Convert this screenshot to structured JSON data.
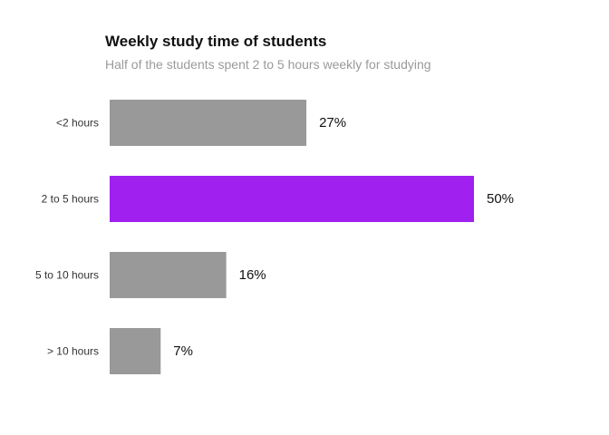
{
  "chart_data": {
    "type": "bar",
    "orientation": "horizontal",
    "title": "Weekly study time of students",
    "subtitle": "Half of the students spent 2 to 5 hours weekly for studying",
    "xlabel": "",
    "ylabel": "",
    "categories": [
      "<2 hours",
      "2 to 5 hours",
      "5 to 10 hours",
      "> 10 hours"
    ],
    "values": [
      27,
      50,
      16,
      7
    ],
    "value_labels": [
      "27%",
      "50%",
      "16%",
      "7%"
    ],
    "unit": "%",
    "xlim": [
      0,
      50
    ],
    "grid": false,
    "highlight_index": 1,
    "colors": {
      "default": "#999999",
      "highlight": "#a020f0"
    }
  }
}
